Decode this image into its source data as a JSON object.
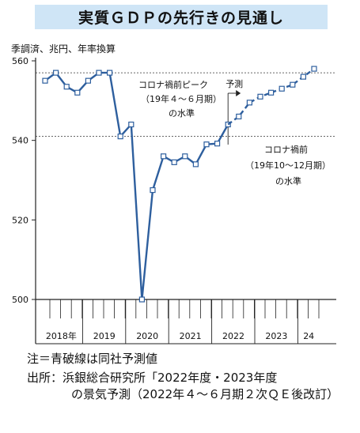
{
  "title": "実質ＧＤＰの先行きの見通し",
  "unit_label": "季調済、兆円、年率換算",
  "note": "注＝青破線は同社予測値",
  "source_lines": [
    "出所：浜銀総合研究所「2022年度・2023年度",
    "の景気予測（2022年４～６月期２次ＱＥ後改訂）"
  ],
  "chart_data": {
    "type": "line",
    "x": [
      "2018Q1",
      "2018Q2",
      "2018Q3",
      "2018Q4",
      "2019Q1",
      "2019Q2",
      "2019Q3",
      "2019Q4",
      "2020Q1",
      "2020Q2",
      "2020Q3",
      "2020Q4",
      "2021Q1",
      "2021Q2",
      "2021Q3",
      "2021Q4",
      "2022Q1",
      "2022Q2",
      "2022Q3",
      "2022Q4",
      "2023Q1",
      "2023Q2",
      "2023Q3",
      "2023Q4",
      "2024Q1",
      "2024Q2"
    ],
    "series": [
      {
        "values": [
          555,
          557,
          553.5,
          552,
          555,
          557,
          557,
          541,
          544,
          500,
          527.5,
          536,
          534.5,
          536,
          534,
          539,
          539.2,
          544,
          null,
          null,
          null,
          null,
          null,
          null,
          null,
          null
        ],
        "style": "solid"
      },
      {
        "values": [
          null,
          null,
          null,
          null,
          null,
          null,
          null,
          null,
          null,
          null,
          null,
          null,
          null,
          null,
          null,
          null,
          null,
          544,
          546,
          549.5,
          551,
          552,
          553,
          554,
          556,
          558
        ],
        "style": "dashed"
      }
    ],
    "ylim": [
      500,
      560
    ],
    "yticks": [
      500,
      520,
      540,
      560
    ],
    "year_labels": [
      "2018年",
      "2019",
      "2020",
      "2021",
      "2022",
      "2023",
      "24"
    ],
    "reference_lines": [
      {
        "value": 557,
        "label": [
          "コロナ禍前ピーク",
          "（19年４～６月期）",
          "の水準"
        ]
      },
      {
        "value": 541,
        "label": [
          "コロナ禍前",
          "（19年10～12月期）",
          "の水準"
        ]
      }
    ],
    "forecast_label": "予測",
    "colors": {
      "line": "#2e5f9e",
      "title_bg": "#cfe5f6"
    },
    "grid": false
  }
}
